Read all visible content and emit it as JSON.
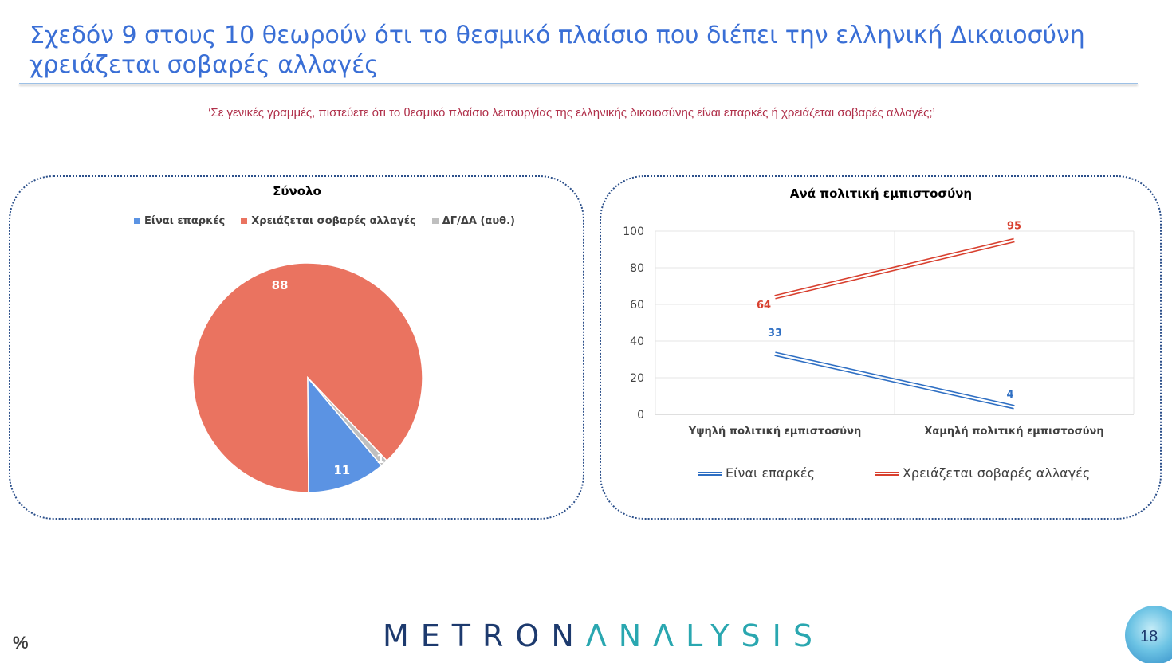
{
  "slide": {
    "title": "Σχεδόν 9 στους 10 θεωρούν ότι το θεσμικό πλαίσιο που διέπει την ελληνική Δικαιοσύνη χρειάζεται σοβαρές αλλαγές",
    "question": "‘Σε γενικές γραμμές, πιστεύετε ότι το θεσμικό πλαίσιο λειτουργίας της ελληνικής δικαιοσύνης είναι επαρκές ή χρειάζεται σοβαρές αλλαγές;’",
    "percent_mark": "%",
    "page_number": "18"
  },
  "brand": {
    "part1": "METRON",
    "part2": "ΛNΛLYSIS"
  },
  "colors": {
    "adequate": "#5b93e3",
    "changes": "#ea7360",
    "dk": "#bfbfbf",
    "line_blue": "#2f6fc3",
    "line_red": "#d8402f"
  },
  "chart_data": [
    {
      "type": "pie",
      "title": "Σύνολο",
      "legend_position": "top",
      "slices": [
        {
          "label": "Είναι επαρκές",
          "value": 11
        },
        {
          "label": "Χρειάζεται σοβαρές αλλαγές",
          "value": 88
        },
        {
          "label": "ΔΓ/ΔΑ (αυθ.)",
          "value": 1
        }
      ]
    },
    {
      "type": "line",
      "title": "Ανά πολιτική εμπιστοσύνη",
      "categories": [
        "Υψηλή πολιτική εμπιστοσύνη",
        "Χαμηλή πολιτική εμπιστοσύνη"
      ],
      "series": [
        {
          "name": "Είναι επαρκές",
          "values": [
            33,
            4
          ]
        },
        {
          "name": "Χρειάζεται σοβαρές αλλαγές",
          "values": [
            64,
            95
          ]
        }
      ],
      "ylim": [
        0,
        100
      ],
      "yticks": [
        "0",
        "20",
        "40",
        "60",
        "80",
        "100"
      ],
      "grid": true,
      "legend_position": "bottom"
    }
  ]
}
